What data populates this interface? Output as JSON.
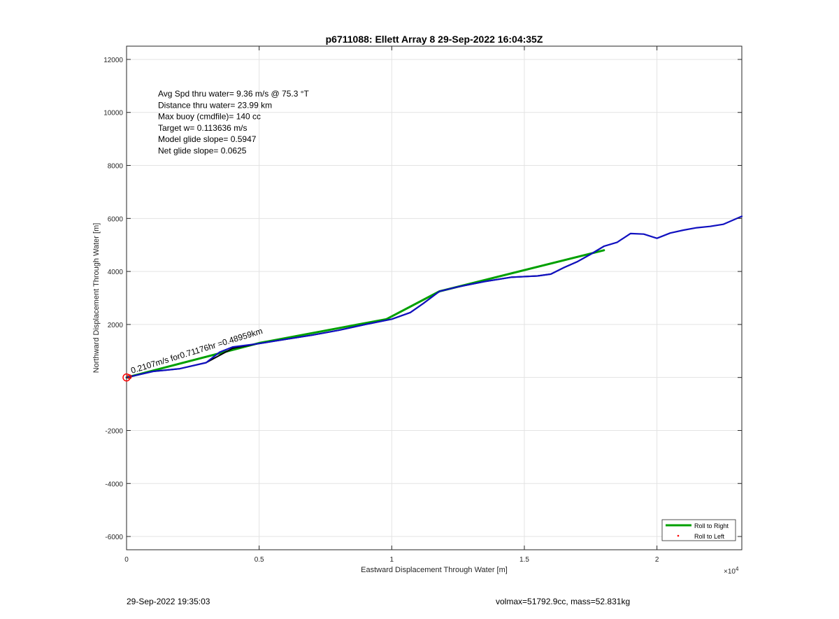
{
  "chart_data": {
    "type": "line",
    "title": "p6711088: Ellett Array 8 29-Sep-2022 16:04:35Z",
    "xlabel": "Eastward Displacement Through Water [m]",
    "ylabel": "Northward Displacement Through Water [m]",
    "x_exponent_label": "×10",
    "x_exponent_power": "4",
    "xlim": [
      0,
      23200
    ],
    "ylim": [
      -6500,
      12500
    ],
    "x_ticks": [
      0,
      5000,
      10000,
      15000,
      20000
    ],
    "x_tick_labels": [
      "0",
      "0.5",
      "1",
      "1.5",
      "2"
    ],
    "y_ticks": [
      -6000,
      -4000,
      -2000,
      0,
      2000,
      4000,
      6000,
      8000,
      10000,
      12000
    ],
    "y_tick_labels": [
      "-6000",
      "-4000",
      "-2000",
      "",
      "2000",
      "4000",
      "6000",
      "8000",
      "10000",
      "12000"
    ],
    "grid": true,
    "annotations": [
      "Avg Spd thru water=  9.36 m/s @  75.3 °T",
      "Distance thru water= 23.99 km",
      "Max buoy (cmdfile)= 140 cc",
      "Target w= 0.113636 m/s",
      "Model glide slope= 0.5947",
      "Net glide slope= 0.0625"
    ],
    "track_annotation": "0.2107m/s for0.71176hr =0.48959km",
    "legend": {
      "placement": "bottom-right",
      "entries": [
        {
          "label": "Roll to Right",
          "color": "#00a000",
          "style": "line"
        },
        {
          "label": "Roll to Left",
          "color": "#ff0000",
          "style": "dot"
        }
      ]
    },
    "series": [
      {
        "name": "Roll to Right",
        "color": "#00a000",
        "x": [
          0,
          5000,
          9800,
          11800,
          18000
        ],
        "y": [
          0,
          1300,
          2200,
          3250,
          4800
        ]
      },
      {
        "color": "#000000",
        "x": [
          0,
          1000,
          2000,
          3000,
          4000,
          5000,
          6000,
          7000,
          8000,
          9000,
          10000,
          10700,
          11200,
          11800,
          12500,
          13500,
          14500,
          15500,
          16000,
          16500,
          17000,
          17500,
          18000
        ],
        "y": [
          0,
          230,
          330,
          560,
          1100,
          1280,
          1440,
          1600,
          1780,
          2000,
          2200,
          2450,
          2800,
          3250,
          3420,
          3620,
          3780,
          3830,
          3900,
          4150,
          4370,
          4650,
          4950
        ]
      },
      {
        "color": "#1010c0",
        "x": [
          0,
          1000,
          2000,
          3000,
          3500,
          4000,
          5000,
          6000,
          7000,
          8000,
          9000,
          10000,
          10700,
          11200,
          11800,
          12500,
          13500,
          14500,
          15500,
          16000,
          16500,
          17000,
          17500,
          18000,
          18500,
          19000,
          19500,
          20000,
          20500,
          21000,
          21500,
          22000,
          22500,
          23200
        ],
        "y": [
          0,
          230,
          330,
          560,
          950,
          1150,
          1280,
          1440,
          1600,
          1780,
          2000,
          2200,
          2450,
          2800,
          3250,
          3420,
          3620,
          3780,
          3830,
          3900,
          4150,
          4370,
          4650,
          4950,
          5100,
          5430,
          5410,
          5250,
          5450,
          5560,
          5650,
          5700,
          5780,
          6080
        ]
      },
      {
        "color": "#ff0000",
        "type": "marker",
        "x": [
          0
        ],
        "y": [
          0
        ]
      }
    ]
  },
  "footer": {
    "timestamp": "29-Sep-2022 19:35:03",
    "volmax_mass": "volmax=51792.9cc, mass=52.831kg"
  }
}
